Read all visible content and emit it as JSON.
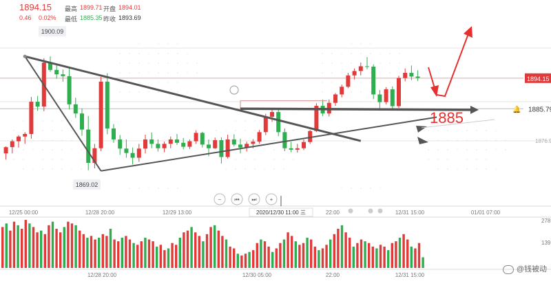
{
  "header": {
    "last_price": "1894.15",
    "change": "0.46",
    "change_pct": "0.02%",
    "high_label": "最高",
    "high": "1899.71",
    "open_label": "开盘",
    "open": "1894.01",
    "low_label": "最低",
    "low": "1885.35",
    "prev_close_label": "昨收",
    "prev_close": "1893.69"
  },
  "price_tags": {
    "current": "1894.15",
    "line": "1885.79",
    "lower": "1876.95"
  },
  "annotations": {
    "high_point": "1900.09",
    "low_point": "1869.02",
    "target": "1885"
  },
  "crosshair_label": "2020/12/30 11:00 三",
  "nav_buttons": [
    "−",
    "⏮",
    "⏭",
    "+"
  ],
  "volume_axis": [
    "278",
    "139"
  ],
  "watermark": "@钱被动",
  "colors": {
    "up": "#e03a3a",
    "down": "#2fae50",
    "trend": "#555555",
    "arrow": "#e53030"
  },
  "chart_data": [
    {
      "type": "candlestick",
      "title": "",
      "x_ticks_top": [
        "12/25 00:00",
        "12/28 20:00",
        "12/29 13:00",
        "12/30 11:00",
        "22:00",
        "12/31 15:00",
        "01/01 07:00"
      ],
      "ylim": [
        1862,
        1908
      ],
      "series": [
        {
          "o": 1873.6,
          "h": 1875.5,
          "l": 1871.9,
          "c": 1875.3
        },
        {
          "o": 1875.3,
          "h": 1877.4,
          "l": 1873.6,
          "c": 1876.9
        },
        {
          "o": 1876.9,
          "h": 1878.6,
          "l": 1875.2,
          "c": 1878.2
        },
        {
          "o": 1878.2,
          "h": 1879.4,
          "l": 1876.2,
          "c": 1878.9
        },
        {
          "o": 1878.9,
          "h": 1889.0,
          "l": 1877.6,
          "c": 1887.7
        },
        {
          "o": 1887.7,
          "h": 1889.3,
          "l": 1885.2,
          "c": 1886.4
        },
        {
          "o": 1886.4,
          "h": 1899.6,
          "l": 1885.1,
          "c": 1898.4
        },
        {
          "o": 1898.4,
          "h": 1900.1,
          "l": 1895.9,
          "c": 1896.4
        },
        {
          "o": 1896.4,
          "h": 1897.7,
          "l": 1894.0,
          "c": 1895.2
        },
        {
          "o": 1895.2,
          "h": 1896.5,
          "l": 1893.2,
          "c": 1894.7
        },
        {
          "o": 1894.7,
          "h": 1896.9,
          "l": 1885.6,
          "c": 1887.0
        },
        {
          "o": 1887.0,
          "h": 1888.8,
          "l": 1883.3,
          "c": 1884.5
        },
        {
          "o": 1884.5,
          "h": 1885.9,
          "l": 1878.4,
          "c": 1880.1
        },
        {
          "o": 1880.1,
          "h": 1883.8,
          "l": 1869.0,
          "c": 1871.0
        },
        {
          "o": 1871.0,
          "h": 1876.2,
          "l": 1869.5,
          "c": 1875.0
        },
        {
          "o": 1875.0,
          "h": 1894.5,
          "l": 1874.2,
          "c": 1893.2
        },
        {
          "o": 1893.2,
          "h": 1895.5,
          "l": 1878.8,
          "c": 1880.4
        },
        {
          "o": 1880.4,
          "h": 1881.6,
          "l": 1876.5,
          "c": 1877.4
        },
        {
          "o": 1877.4,
          "h": 1878.6,
          "l": 1873.2,
          "c": 1874.9
        },
        {
          "o": 1874.9,
          "h": 1877.4,
          "l": 1872.4,
          "c": 1873.7
        },
        {
          "o": 1873.7,
          "h": 1875.2,
          "l": 1870.6,
          "c": 1872.4
        },
        {
          "o": 1872.4,
          "h": 1876.2,
          "l": 1871.3,
          "c": 1874.9
        },
        {
          "o": 1874.9,
          "h": 1878.7,
          "l": 1873.6,
          "c": 1877.4
        },
        {
          "o": 1877.4,
          "h": 1879.3,
          "l": 1875.0,
          "c": 1876.2
        },
        {
          "o": 1876.2,
          "h": 1877.4,
          "l": 1874.1,
          "c": 1875.0
        },
        {
          "o": 1875.0,
          "h": 1876.8,
          "l": 1873.9,
          "c": 1876.2
        },
        {
          "o": 1876.2,
          "h": 1878.2,
          "l": 1875.0,
          "c": 1877.4
        },
        {
          "o": 1877.4,
          "h": 1878.9,
          "l": 1875.9,
          "c": 1876.5
        },
        {
          "o": 1876.5,
          "h": 1877.8,
          "l": 1874.7,
          "c": 1875.4
        },
        {
          "o": 1875.4,
          "h": 1877.4,
          "l": 1874.8,
          "c": 1876.9
        },
        {
          "o": 1876.9,
          "h": 1879.9,
          "l": 1876.2,
          "c": 1879.2
        },
        {
          "o": 1879.2,
          "h": 1879.5,
          "l": 1875.2,
          "c": 1876.0
        },
        {
          "o": 1876.0,
          "h": 1877.4,
          "l": 1872.8,
          "c": 1875.0
        },
        {
          "o": 1875.0,
          "h": 1877.9,
          "l": 1874.8,
          "c": 1877.2
        },
        {
          "o": 1877.2,
          "h": 1878.0,
          "l": 1870.8,
          "c": 1872.6
        },
        {
          "o": 1872.6,
          "h": 1878.7,
          "l": 1872.2,
          "c": 1877.4
        },
        {
          "o": 1877.4,
          "h": 1878.8,
          "l": 1875.5,
          "c": 1876.0
        },
        {
          "o": 1876.0,
          "h": 1877.6,
          "l": 1873.6,
          "c": 1875.2
        },
        {
          "o": 1875.2,
          "h": 1876.8,
          "l": 1874.1,
          "c": 1876.2
        },
        {
          "o": 1876.2,
          "h": 1877.5,
          "l": 1875.0,
          "c": 1876.8
        },
        {
          "o": 1876.8,
          "h": 1880.0,
          "l": 1876.2,
          "c": 1879.4
        },
        {
          "o": 1879.4,
          "h": 1884.4,
          "l": 1878.6,
          "c": 1883.6
        },
        {
          "o": 1883.6,
          "h": 1885.7,
          "l": 1882.2,
          "c": 1884.9
        },
        {
          "o": 1884.9,
          "h": 1885.8,
          "l": 1878.3,
          "c": 1879.4
        },
        {
          "o": 1879.4,
          "h": 1880.4,
          "l": 1874.2,
          "c": 1875.0
        },
        {
          "o": 1875.0,
          "h": 1876.8,
          "l": 1873.9,
          "c": 1874.6
        },
        {
          "o": 1874.6,
          "h": 1876.2,
          "l": 1873.8,
          "c": 1875.0
        },
        {
          "o": 1875.0,
          "h": 1877.4,
          "l": 1874.5,
          "c": 1876.7
        },
        {
          "o": 1876.7,
          "h": 1880.0,
          "l": 1876.2,
          "c": 1879.7
        },
        {
          "o": 1879.7,
          "h": 1887.3,
          "l": 1879.4,
          "c": 1886.6
        },
        {
          "o": 1886.6,
          "h": 1888.3,
          "l": 1883.8,
          "c": 1884.5
        },
        {
          "o": 1884.5,
          "h": 1888.3,
          "l": 1883.7,
          "c": 1887.4
        },
        {
          "o": 1887.4,
          "h": 1890.1,
          "l": 1886.6,
          "c": 1889.7
        },
        {
          "o": 1889.7,
          "h": 1892.4,
          "l": 1888.9,
          "c": 1891.8
        },
        {
          "o": 1891.8,
          "h": 1895.6,
          "l": 1891.4,
          "c": 1894.9
        },
        {
          "o": 1894.9,
          "h": 1896.8,
          "l": 1893.8,
          "c": 1896.1
        },
        {
          "o": 1896.1,
          "h": 1898.4,
          "l": 1894.9,
          "c": 1897.4
        },
        {
          "o": 1897.4,
          "h": 1899.9,
          "l": 1896.6,
          "c": 1897.3
        },
        {
          "o": 1897.3,
          "h": 1897.9,
          "l": 1888.4,
          "c": 1889.7
        },
        {
          "o": 1889.7,
          "h": 1890.9,
          "l": 1885.3,
          "c": 1887.6
        },
        {
          "o": 1887.6,
          "h": 1891.7,
          "l": 1887.0,
          "c": 1891.1
        },
        {
          "o": 1891.1,
          "h": 1891.9,
          "l": 1885.8,
          "c": 1886.5
        },
        {
          "o": 1886.5,
          "h": 1894.8,
          "l": 1886.0,
          "c": 1894.2
        },
        {
          "o": 1894.2,
          "h": 1896.8,
          "l": 1893.3,
          "c": 1895.6
        },
        {
          "o": 1895.6,
          "h": 1897.6,
          "l": 1893.6,
          "c": 1894.6
        },
        {
          "o": 1894.6,
          "h": 1896.3,
          "l": 1893.4,
          "c": 1894.2
        }
      ],
      "drawings": [
        {
          "type": "trendline",
          "from": [
            3,
            1900.1
          ],
          "to": [
            15,
            1868.8
          ]
        },
        {
          "type": "trendline",
          "from": [
            15,
            1868.8
          ],
          "to": [
            68,
            1883.5
          ]
        },
        {
          "type": "trendline",
          "from": [
            3,
            1900.1
          ],
          "to": [
            56,
            1877.0
          ]
        },
        {
          "type": "ray",
          "from": [
            37,
            1885.8
          ],
          "to": [
            70,
            1885.5
          ]
        },
        {
          "type": "hline",
          "level": 1894.15,
          "label": "1894.15"
        },
        {
          "type": "hline",
          "level": 1885.79,
          "label": "1885.79"
        }
      ]
    },
    {
      "type": "bar",
      "title": "",
      "x_ticks_bottom": [
        "12/28 20:00",
        "12/30 05:00",
        "22:00",
        "12/31 15:00"
      ],
      "ylim": [
        0,
        278
      ],
      "values": [
        230,
        250,
        210,
        260,
        240,
        220,
        270,
        250,
        230,
        200,
        210,
        190,
        240,
        260,
        220,
        200,
        230,
        260,
        250,
        240,
        210,
        190,
        170,
        180,
        160,
        170,
        190,
        180,
        220,
        160,
        150,
        170,
        180,
        160,
        140,
        130,
        150,
        170,
        160,
        150,
        120,
        130,
        100,
        110,
        140,
        130,
        170,
        200,
        210,
        230,
        200,
        180,
        150,
        190,
        230,
        240,
        210,
        180,
        160,
        120,
        110,
        80,
        70,
        80,
        90,
        100,
        140,
        160,
        150,
        120,
        90,
        110,
        140,
        160,
        200,
        180,
        150,
        130,
        140,
        170,
        160,
        120,
        100,
        110,
        130,
        160,
        190,
        220,
        240,
        200,
        170,
        120,
        140,
        160,
        150,
        140,
        120,
        110,
        130,
        120,
        100,
        140,
        150,
        170,
        190,
        160,
        120,
        110,
        140,
        60
      ],
      "colors_up_down": "alternating"
    }
  ]
}
